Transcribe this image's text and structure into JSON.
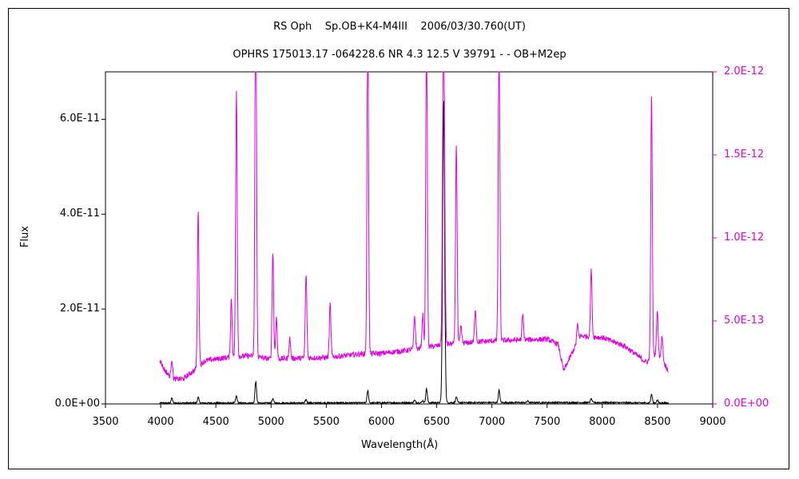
{
  "chart_data": {
    "type": "line",
    "title": "RS Oph    Sp.OB+K4-M4III    2006/03/30.760(UT)",
    "subtitle": "OPHRS 175013.17 -064228.6 NR 4.3 12.5 V 39791 - - OB+M2ep",
    "xlabel": "Wavelength(Å)",
    "ylabel": "Flux",
    "xlim": [
      3500,
      9000
    ],
    "xticks": [
      "3500",
      "4000",
      "4500",
      "5000",
      "5500",
      "6000",
      "6500",
      "7000",
      "7500",
      "8000",
      "8500",
      "9000"
    ],
    "ylim_left": [
      0,
      7e-11
    ],
    "yticks_left": [
      "0.0E+00",
      "2.0E-11",
      "4.0E-11",
      "6.0E-11"
    ],
    "ylim_right": [
      0,
      2e-12
    ],
    "yticks_right": [
      "0.0E+00",
      "5.0E-13",
      "1.0E-12",
      "1.5E-12",
      "2.0E-12"
    ],
    "grid": false,
    "colors": {
      "black_series": "#000000",
      "magenta_series": "#e000e0",
      "right_axis": "#e000e0"
    },
    "series": [
      {
        "axis": "left",
        "color": "#000000",
        "continuum": [
          [
            3990,
            2e-13
          ],
          [
            5000,
            2e-13
          ],
          [
            6000,
            2.5e-13
          ],
          [
            7000,
            3e-13
          ],
          [
            8000,
            3e-13
          ],
          [
            8600,
            2e-13
          ]
        ],
        "lines": [
          [
            4101,
            1e-12
          ],
          [
            4340,
            1.2e-12
          ],
          [
            4686,
            1.5e-12
          ],
          [
            4861,
            4.5e-12
          ],
          [
            5016,
            9e-13
          ],
          [
            5317,
            7e-13
          ],
          [
            5876,
            2.5e-12
          ],
          [
            6300,
            5e-13
          ],
          [
            6374,
            4e-13
          ],
          [
            6408,
            3e-12
          ],
          [
            6563,
            6.4e-11
          ],
          [
            6678,
            1.2e-12
          ],
          [
            7065,
            2.6e-12
          ],
          [
            7325,
            3e-13
          ],
          [
            7900,
            8e-13
          ],
          [
            8446,
            1.8e-12
          ],
          [
            8498,
            6e-13
          ]
        ]
      },
      {
        "axis": "right",
        "color": "#e000e0",
        "continuum": [
          [
            3990,
            2.7e-13
          ],
          [
            4030,
            2.1e-13
          ],
          [
            4100,
            1.5e-13
          ],
          [
            4200,
            1.5e-13
          ],
          [
            4300,
            2e-13
          ],
          [
            4400,
            2.6e-13
          ],
          [
            4600,
            2.8e-13
          ],
          [
            4800,
            2.9e-13
          ],
          [
            5000,
            2.7e-13
          ],
          [
            5200,
            2.75e-13
          ],
          [
            5500,
            2.8e-13
          ],
          [
            5800,
            3e-13
          ],
          [
            6000,
            3.05e-13
          ],
          [
            6200,
            3.2e-13
          ],
          [
            6400,
            3.4e-13
          ],
          [
            6600,
            3.6e-13
          ],
          [
            6800,
            3.7e-13
          ],
          [
            7000,
            3.8e-13
          ],
          [
            7200,
            3.85e-13
          ],
          [
            7500,
            3.9e-13
          ],
          [
            7600,
            3.6e-13
          ],
          [
            7650,
            2e-13
          ],
          [
            7700,
            2.7e-13
          ],
          [
            7800,
            4.1e-13
          ],
          [
            8000,
            4e-13
          ],
          [
            8200,
            3.5e-13
          ],
          [
            8400,
            2.5e-13
          ],
          [
            8500,
            3.1e-13
          ],
          [
            8600,
            2e-13
          ]
        ],
        "lines": [
          [
            4101,
            1.2e-13
          ],
          [
            4340,
            9.5e-13
          ],
          [
            4640,
            3.5e-13
          ],
          [
            4686,
            1.6e-12
          ],
          [
            4861,
            2.5e-12
          ],
          [
            5016,
            6.5e-13
          ],
          [
            5048,
            2.5e-13
          ],
          [
            5169,
            1.2e-13
          ],
          [
            5317,
            5e-13
          ],
          [
            5535,
            3.2e-13
          ],
          [
            5876,
            2e-12
          ],
          [
            6300,
            2e-13
          ],
          [
            6374,
            2e-13
          ],
          [
            6408,
            2e-12
          ],
          [
            6563,
            2e-12
          ],
          [
            6678,
            1.2e-12
          ],
          [
            6720,
            1e-13
          ],
          [
            6850,
            2e-13
          ],
          [
            7065,
            2e-12
          ],
          [
            7280,
            1.5e-13
          ],
          [
            7775,
            1e-13
          ],
          [
            7900,
            4e-13
          ],
          [
            8446,
            1.6e-12
          ],
          [
            8498,
            2.5e-13
          ],
          [
            8542,
            1.5e-13
          ]
        ]
      }
    ]
  }
}
